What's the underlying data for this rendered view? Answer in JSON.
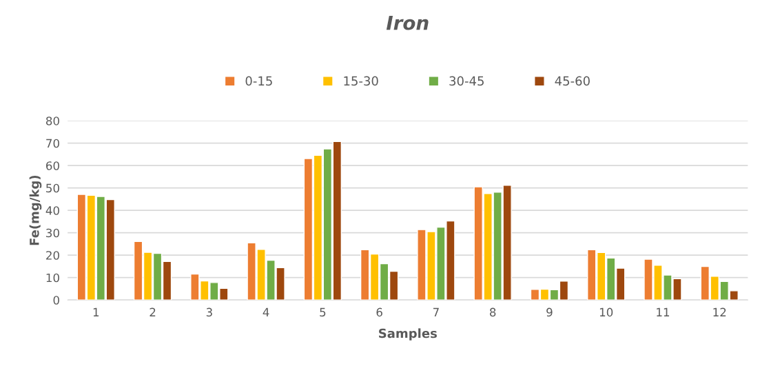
{
  "chart_data": {
    "type": "bar",
    "title": "Iron",
    "xlabel": "Samples",
    "ylabel": "Fe(mg/kg)",
    "categories": [
      "1",
      "2",
      "3",
      "4",
      "5",
      "6",
      "7",
      "8",
      "9",
      "10",
      "11",
      "12"
    ],
    "series": [
      {
        "name": "0-15",
        "color": "#ed7d31",
        "values": [
          47.1,
          26.1,
          11.6,
          25.5,
          63.1,
          22.4,
          31.4,
          50.5,
          4.7,
          22.4,
          18.2,
          15.0
        ]
      },
      {
        "name": "15-30",
        "color": "#ffc000",
        "values": [
          46.7,
          21.3,
          8.5,
          22.6,
          64.6,
          20.5,
          30.5,
          47.5,
          4.8,
          21.2,
          15.5,
          10.6
        ]
      },
      {
        "name": "30-45",
        "color": "#70ad47",
        "values": [
          46.2,
          20.8,
          7.8,
          17.7,
          67.4,
          16.2,
          32.5,
          48.1,
          4.6,
          18.7,
          11.1,
          8.3
        ]
      },
      {
        "name": "45-60",
        "color": "#9e480e",
        "values": [
          44.8,
          17.2,
          5.2,
          14.4,
          70.7,
          12.8,
          35.3,
          51.2,
          8.4,
          14.2,
          9.5,
          4.1
        ]
      }
    ],
    "ylim": [
      0,
      80
    ],
    "yticks": [
      0,
      10,
      20,
      30,
      40,
      50,
      60,
      70,
      80
    ],
    "grid": "y",
    "legend": "top"
  }
}
